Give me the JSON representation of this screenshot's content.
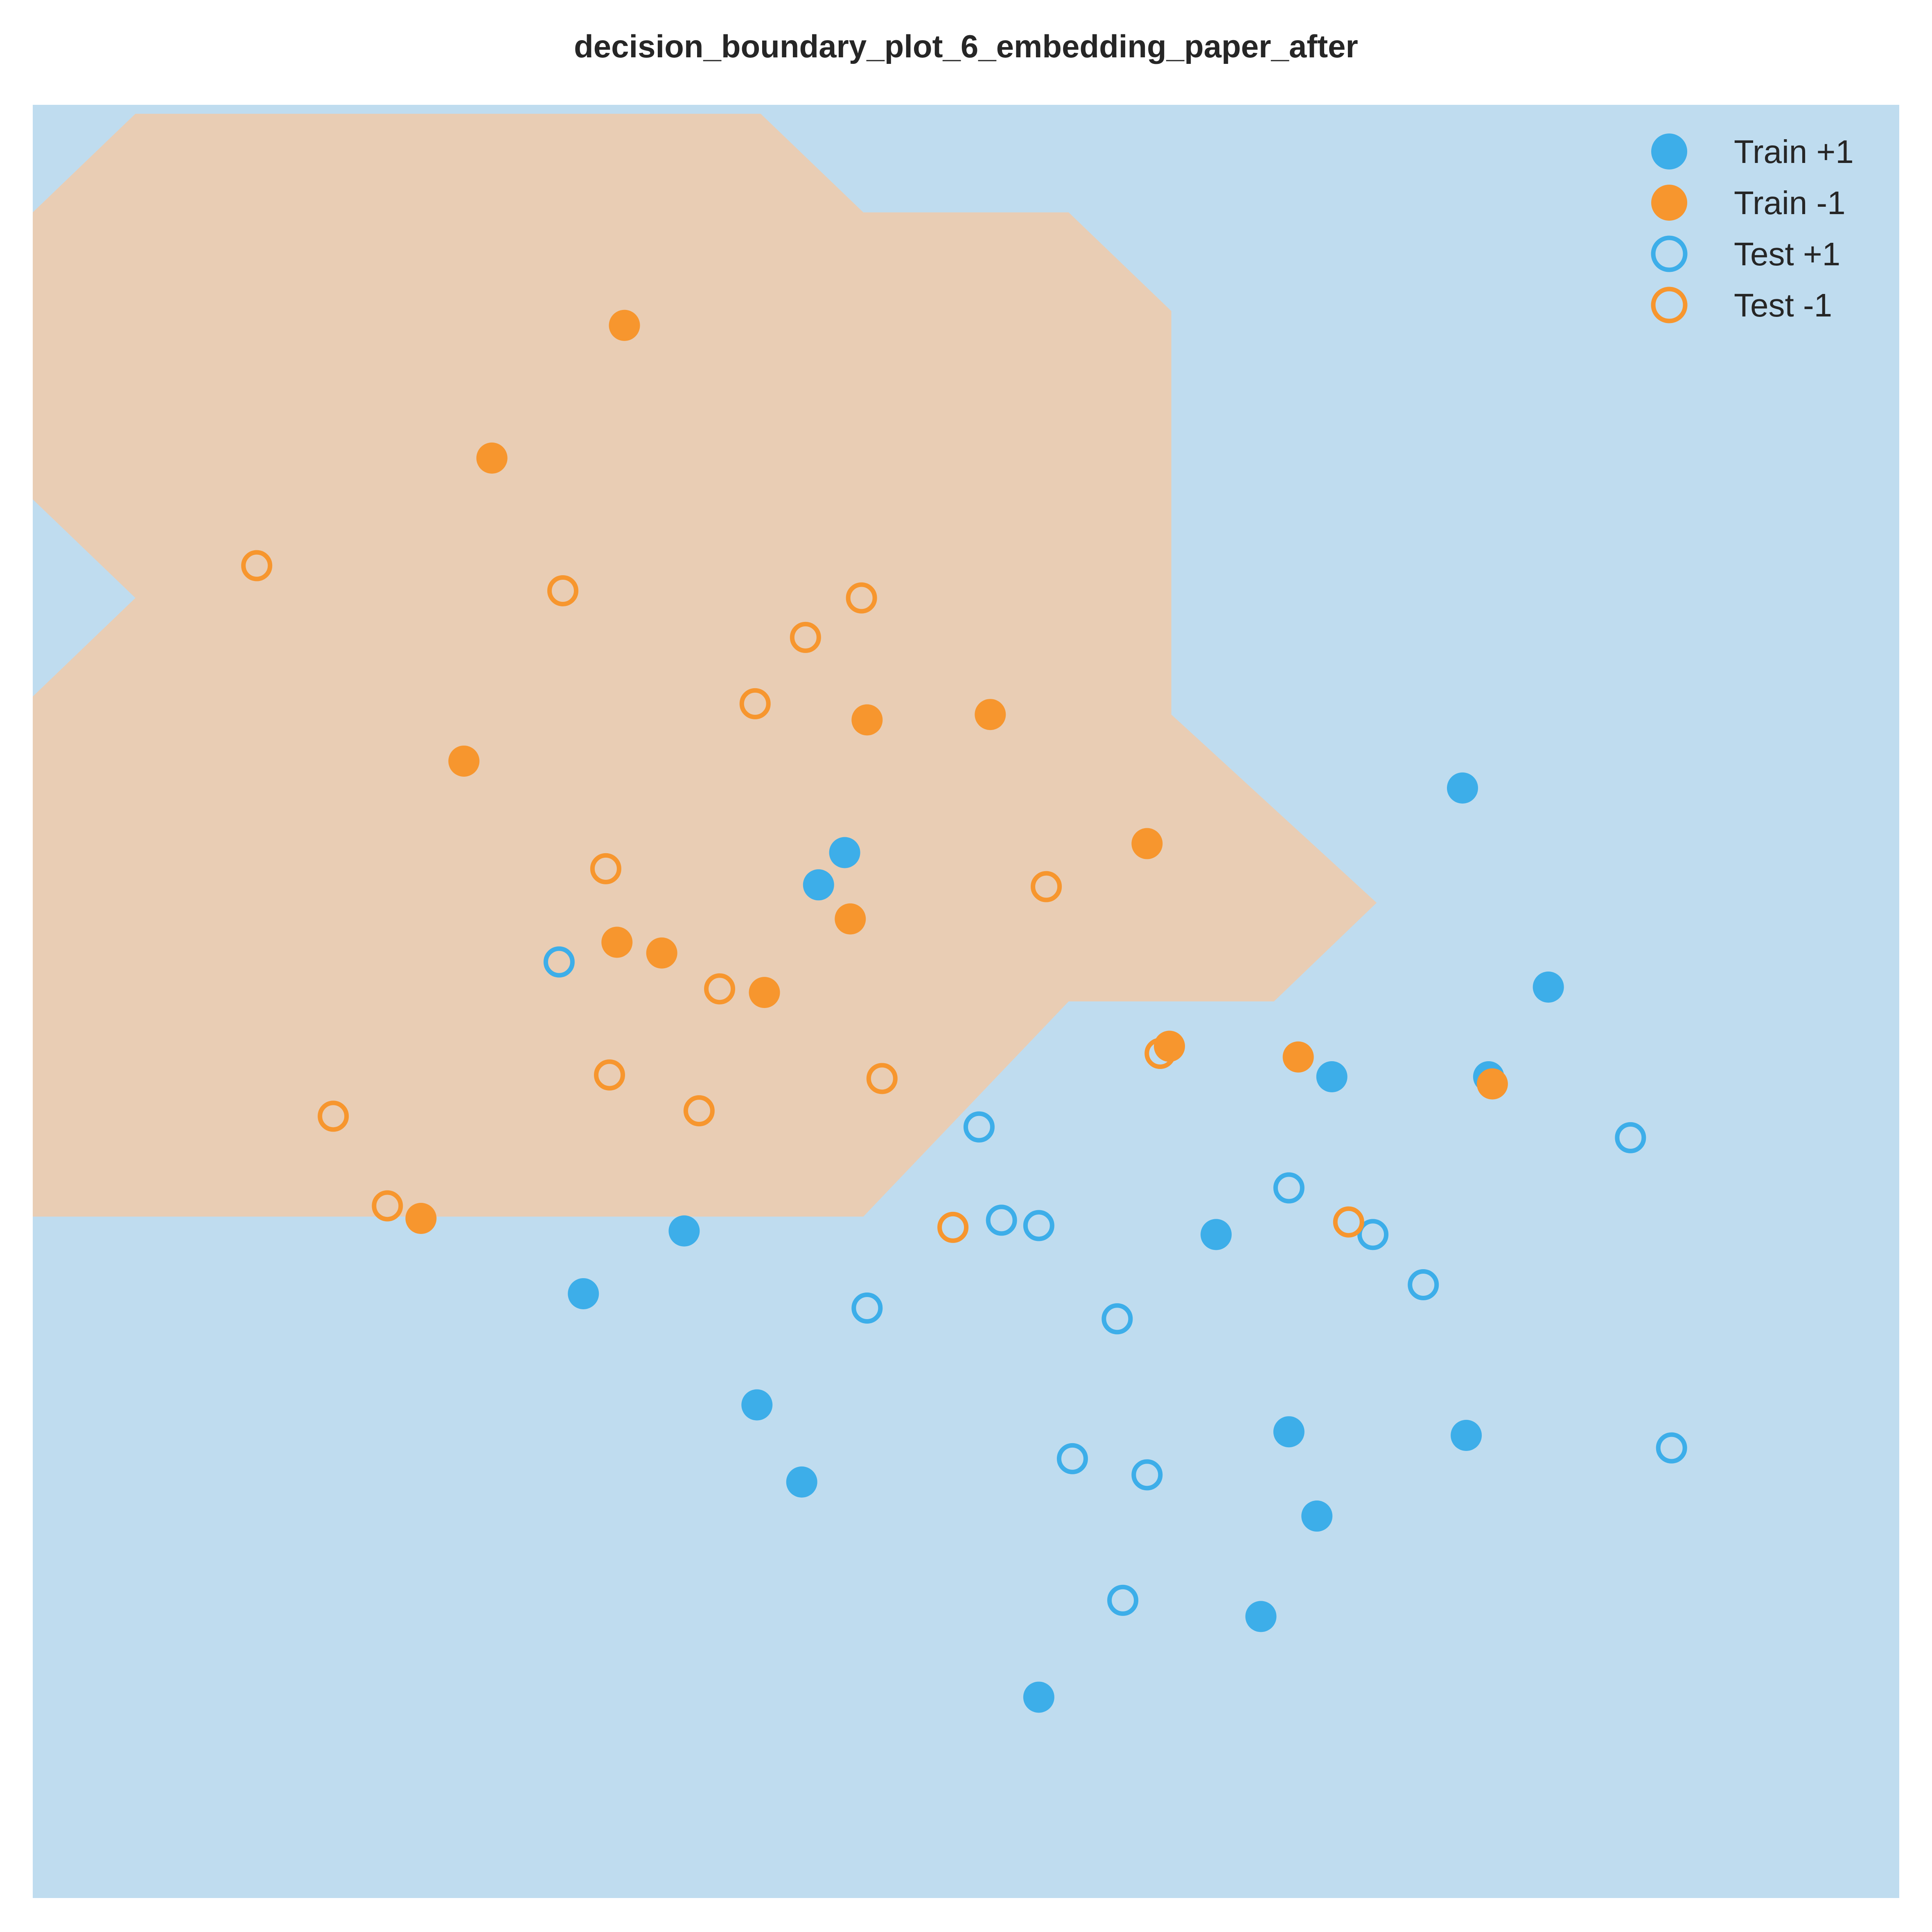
{
  "chart_data": {
    "type": "scatter",
    "title": "decision_boundary_plot_6_embedding_paper_after",
    "xlabel": "",
    "ylabel": "",
    "xlim": [
      0,
      1
    ],
    "ylim": [
      0,
      1
    ],
    "grid": false,
    "axes_ticks": false,
    "legend": {
      "placement": "top-right",
      "entries": [
        {
          "name": "Train +1",
          "marker": "filled",
          "color": "#3daee9"
        },
        {
          "name": "Train -1",
          "marker": "filled",
          "color": "#f7962e"
        },
        {
          "name": "Test +1",
          "marker": "hollow",
          "color": "#3daee9"
        },
        {
          "name": "Test -1",
          "marker": "hollow",
          "color": "#f7962e"
        }
      ]
    },
    "colors": {
      "positive_region": "#bfdcef",
      "negative_region": "#e9cdb4",
      "positive_points": "#3daee9",
      "negative_points": "#f7962e",
      "title": "#262626"
    },
    "decision_region": {
      "class": "-1",
      "polygon": [
        [
          0.0,
          0.38
        ],
        [
          0.0,
          0.67
        ],
        [
          0.055,
          0.725
        ],
        [
          0.0,
          0.78
        ],
        [
          0.0,
          0.94
        ],
        [
          0.055,
          0.995
        ],
        [
          0.39,
          0.995
        ],
        [
          0.445,
          0.94
        ],
        [
          0.555,
          0.94
        ],
        [
          0.61,
          0.885
        ],
        [
          0.61,
          0.66
        ],
        [
          0.72,
          0.555
        ],
        [
          0.665,
          0.5
        ],
        [
          0.555,
          0.5
        ],
        [
          0.445,
          0.38
        ]
      ]
    },
    "series": [
      {
        "name": "Train +1",
        "x": [
          0.435,
          0.421,
          0.766,
          0.812,
          0.696,
          0.349,
          0.295,
          0.388,
          0.412,
          0.634,
          0.673,
          0.768,
          0.688,
          0.658,
          0.539,
          0.78
        ],
        "y": [
          0.583,
          0.565,
          0.619,
          0.508,
          0.458,
          0.372,
          0.337,
          0.275,
          0.232,
          0.37,
          0.26,
          0.258,
          0.213,
          0.157,
          0.112,
          0.458
        ]
      },
      {
        "name": "Train -1",
        "x": [
          0.317,
          0.246,
          0.231,
          0.447,
          0.513,
          0.597,
          0.313,
          0.337,
          0.438,
          0.392,
          0.609,
          0.678,
          0.782,
          0.208
        ],
        "y": [
          0.877,
          0.803,
          0.634,
          0.657,
          0.66,
          0.588,
          0.533,
          0.527,
          0.546,
          0.505,
          0.475,
          0.469,
          0.454,
          0.379
        ]
      },
      {
        "name": "Test +1",
        "x": [
          0.282,
          0.507,
          0.673,
          0.856,
          0.718,
          0.519,
          0.539,
          0.745,
          0.447,
          0.581,
          0.557,
          0.597,
          0.878,
          0.584
        ],
        "y": [
          0.522,
          0.43,
          0.396,
          0.424,
          0.37,
          0.378,
          0.375,
          0.342,
          0.329,
          0.323,
          0.245,
          0.236,
          0.251,
          0.166
        ]
      },
      {
        "name": "Test -1",
        "x": [
          0.12,
          0.284,
          0.444,
          0.414,
          0.387,
          0.307,
          0.543,
          0.368,
          0.309,
          0.455,
          0.357,
          0.161,
          0.19,
          0.604,
          0.705,
          0.493
        ],
        "y": [
          0.743,
          0.729,
          0.725,
          0.703,
          0.666,
          0.574,
          0.564,
          0.507,
          0.459,
          0.457,
          0.439,
          0.436,
          0.386,
          0.471,
          0.377,
          0.374
        ]
      }
    ]
  }
}
